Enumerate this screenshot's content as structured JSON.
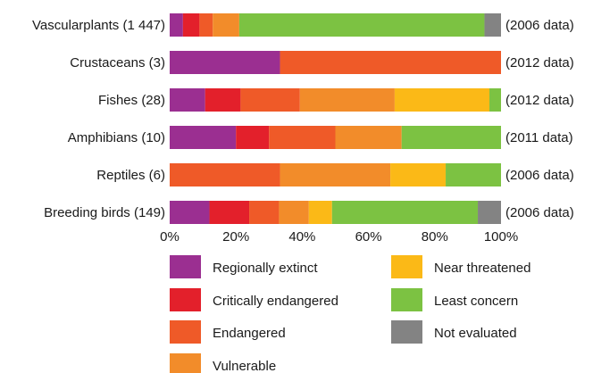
{
  "chart_data": {
    "type": "bar",
    "orientation": "horizontal",
    "stacked": "percent",
    "categories": [
      "Vascularplants (1 447)",
      "Crustaceans (3)",
      "Fishes (28)",
      "Amphibians (10)",
      "Reptiles (6)",
      "Breeding birds (149)"
    ],
    "right_labels": [
      "(2006 data)",
      "(2012 data)",
      "(2012 data)",
      "(2011 data)",
      "(2006 data)",
      "(2006 data)"
    ],
    "series": [
      {
        "name": "Regionally extinct",
        "color": "#9b2f91",
        "values": [
          4,
          33.3,
          10.7,
          20,
          0,
          12
        ]
      },
      {
        "name": "Critically endangered",
        "color": "#e3202b",
        "values": [
          5,
          0,
          10.7,
          10,
          0,
          12
        ]
      },
      {
        "name": "Endangered",
        "color": "#ef5a28",
        "values": [
          4,
          66.7,
          17.9,
          20,
          33.3,
          9
        ]
      },
      {
        "name": "Vulnerable",
        "color": "#f28c2a",
        "values": [
          8,
          0,
          28.6,
          20,
          33.3,
          9
        ]
      },
      {
        "name": "Near threatened",
        "color": "#fbb917",
        "values": [
          0,
          0,
          28.6,
          0,
          16.7,
          7
        ]
      },
      {
        "name": "Least concern",
        "color": "#7cc242",
        "values": [
          74,
          0,
          3.5,
          30,
          16.7,
          44
        ]
      },
      {
        "name": "Not evaluated",
        "color": "#838383",
        "values": [
          5,
          0,
          0,
          0,
          0,
          7
        ]
      }
    ],
    "xlim": [
      0,
      100
    ],
    "xticks": [
      "0%",
      "20%",
      "40%",
      "60%",
      "80%",
      "100%"
    ],
    "legend_position": "bottom",
    "grid": false
  }
}
